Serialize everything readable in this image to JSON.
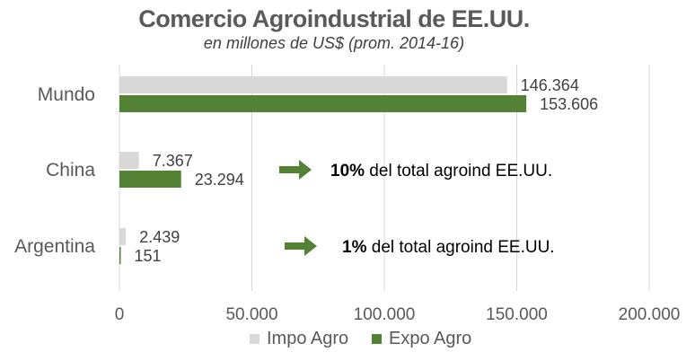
{
  "chart_data": {
    "type": "bar",
    "orientation": "horizontal",
    "title": "Comercio Agroindustrial de EE.UU.",
    "subtitle": "en millones de US$ (prom. 2014-16)",
    "categories": [
      "Mundo",
      "China",
      "Argentina"
    ],
    "series": [
      {
        "name": "Impo Agro",
        "color": "#d9d9d9",
        "values": [
          146364,
          7367,
          2439
        ]
      },
      {
        "name": "Expo Agro",
        "color": "#548235",
        "values": [
          153606,
          23294,
          151
        ]
      }
    ],
    "data_labels": [
      [
        "146.364",
        "7.367",
        "2.439"
      ],
      [
        "153.606",
        "23.294",
        "151"
      ]
    ],
    "xlim": [
      0,
      200000
    ],
    "x_ticks": [
      0,
      50000,
      100000,
      150000,
      200000
    ],
    "x_tick_labels": [
      "0",
      "50.000",
      "100.000",
      "150.000",
      "200.000"
    ],
    "grid": true,
    "legend_position": "bottom",
    "annotations": [
      {
        "category": "China",
        "bold": "10%",
        "text": " del total agroind EE.UU.",
        "arrow_color": "#548235"
      },
      {
        "category": "Argentina",
        "bold": "1%",
        "text": " del total agroind EE.UU.",
        "arrow_color": "#548235"
      }
    ]
  }
}
